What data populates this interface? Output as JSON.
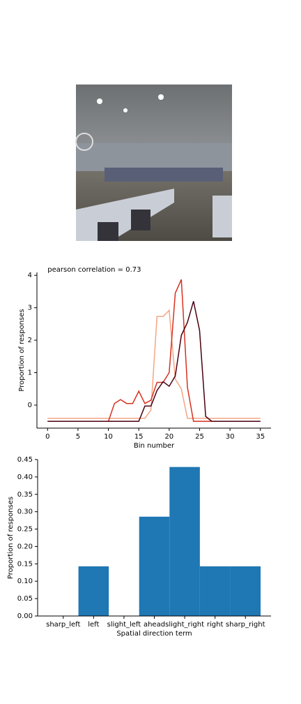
{
  "chart_data": [
    {
      "type": "line",
      "annotation": "pearson correlation = 0.73",
      "x_label": "Bin number",
      "y_label": "Proportion of responses",
      "x": [
        0,
        1,
        2,
        3,
        4,
        5,
        6,
        7,
        8,
        9,
        10,
        11,
        12,
        13,
        14,
        15,
        16,
        17,
        18,
        19,
        20,
        21,
        22,
        23,
        24,
        25,
        26,
        27,
        28,
        29,
        30,
        31,
        32,
        33,
        34,
        35
      ],
      "series": [
        {
          "color": "#f4a582",
          "values": [
            -0.41,
            -0.41,
            -0.41,
            -0.41,
            -0.41,
            -0.41,
            -0.41,
            -0.41,
            -0.41,
            -0.41,
            -0.41,
            -0.41,
            -0.41,
            -0.41,
            -0.41,
            -0.41,
            -0.41,
            -0.15,
            2.73,
            2.73,
            2.92,
            0.8,
            0.5,
            -0.41,
            -0.41,
            -0.41,
            -0.41,
            -0.41,
            -0.41,
            -0.41,
            -0.41,
            -0.41,
            -0.41,
            -0.41,
            -0.41,
            -0.41
          ]
        },
        {
          "color": "#d7301f",
          "values": [
            -0.5,
            -0.5,
            -0.5,
            -0.5,
            -0.5,
            -0.5,
            -0.5,
            -0.5,
            -0.5,
            -0.5,
            -0.5,
            0.05,
            0.17,
            0.05,
            0.05,
            0.43,
            0.05,
            0.15,
            0.7,
            0.7,
            1.0,
            3.45,
            3.87,
            0.55,
            -0.5,
            -0.5,
            -0.5,
            -0.5,
            -0.5,
            -0.5,
            -0.5,
            -0.5,
            -0.5,
            -0.5,
            -0.5,
            -0.5
          ]
        },
        {
          "color": "#4a0010",
          "values": [
            -0.5,
            -0.5,
            -0.5,
            -0.5,
            -0.5,
            -0.5,
            -0.5,
            -0.5,
            -0.5,
            -0.5,
            -0.5,
            -0.5,
            -0.5,
            -0.5,
            -0.5,
            -0.5,
            -0.03,
            -0.03,
            0.45,
            0.72,
            0.58,
            0.9,
            2.15,
            2.55,
            3.2,
            2.3,
            -0.35,
            -0.5,
            -0.5,
            -0.5,
            -0.5,
            -0.5,
            -0.5,
            -0.5,
            -0.5,
            -0.5
          ]
        }
      ],
      "xlim": [
        -1.75,
        36.75
      ],
      "xticks": [
        0,
        5,
        10,
        15,
        20,
        25,
        30,
        35
      ],
      "ylim": [
        -0.71,
        4.09
      ],
      "yticks": [
        0,
        1,
        2,
        3,
        4
      ]
    },
    {
      "type": "bar",
      "x_label": "Spatial direction term",
      "y_label": "Proportion of responses",
      "categories": [
        "sharp_left",
        "left",
        "slight_left",
        "ahead",
        "slight_right",
        "right",
        "sharp_right"
      ],
      "values": [
        0,
        0.1429,
        0,
        0.2857,
        0.4286,
        0.1429,
        0.1429
      ],
      "color": "#1f77b4",
      "ylim": [
        0,
        0.45
      ],
      "yticks": [
        {
          "value": 0,
          "label": "0.00"
        },
        {
          "value": 0.05,
          "label": "0.05"
        },
        {
          "value": 0.1,
          "label": "0.10"
        },
        {
          "value": 0.15,
          "label": "0.15"
        },
        {
          "value": 0.2,
          "label": "0.20"
        },
        {
          "value": 0.25,
          "label": "0.25"
        },
        {
          "value": 0.3,
          "label": "0.30"
        },
        {
          "value": 0.35,
          "label": "0.35"
        },
        {
          "value": 0.4,
          "label": "0.40"
        },
        {
          "value": 0.45,
          "label": "0.45"
        }
      ]
    }
  ]
}
